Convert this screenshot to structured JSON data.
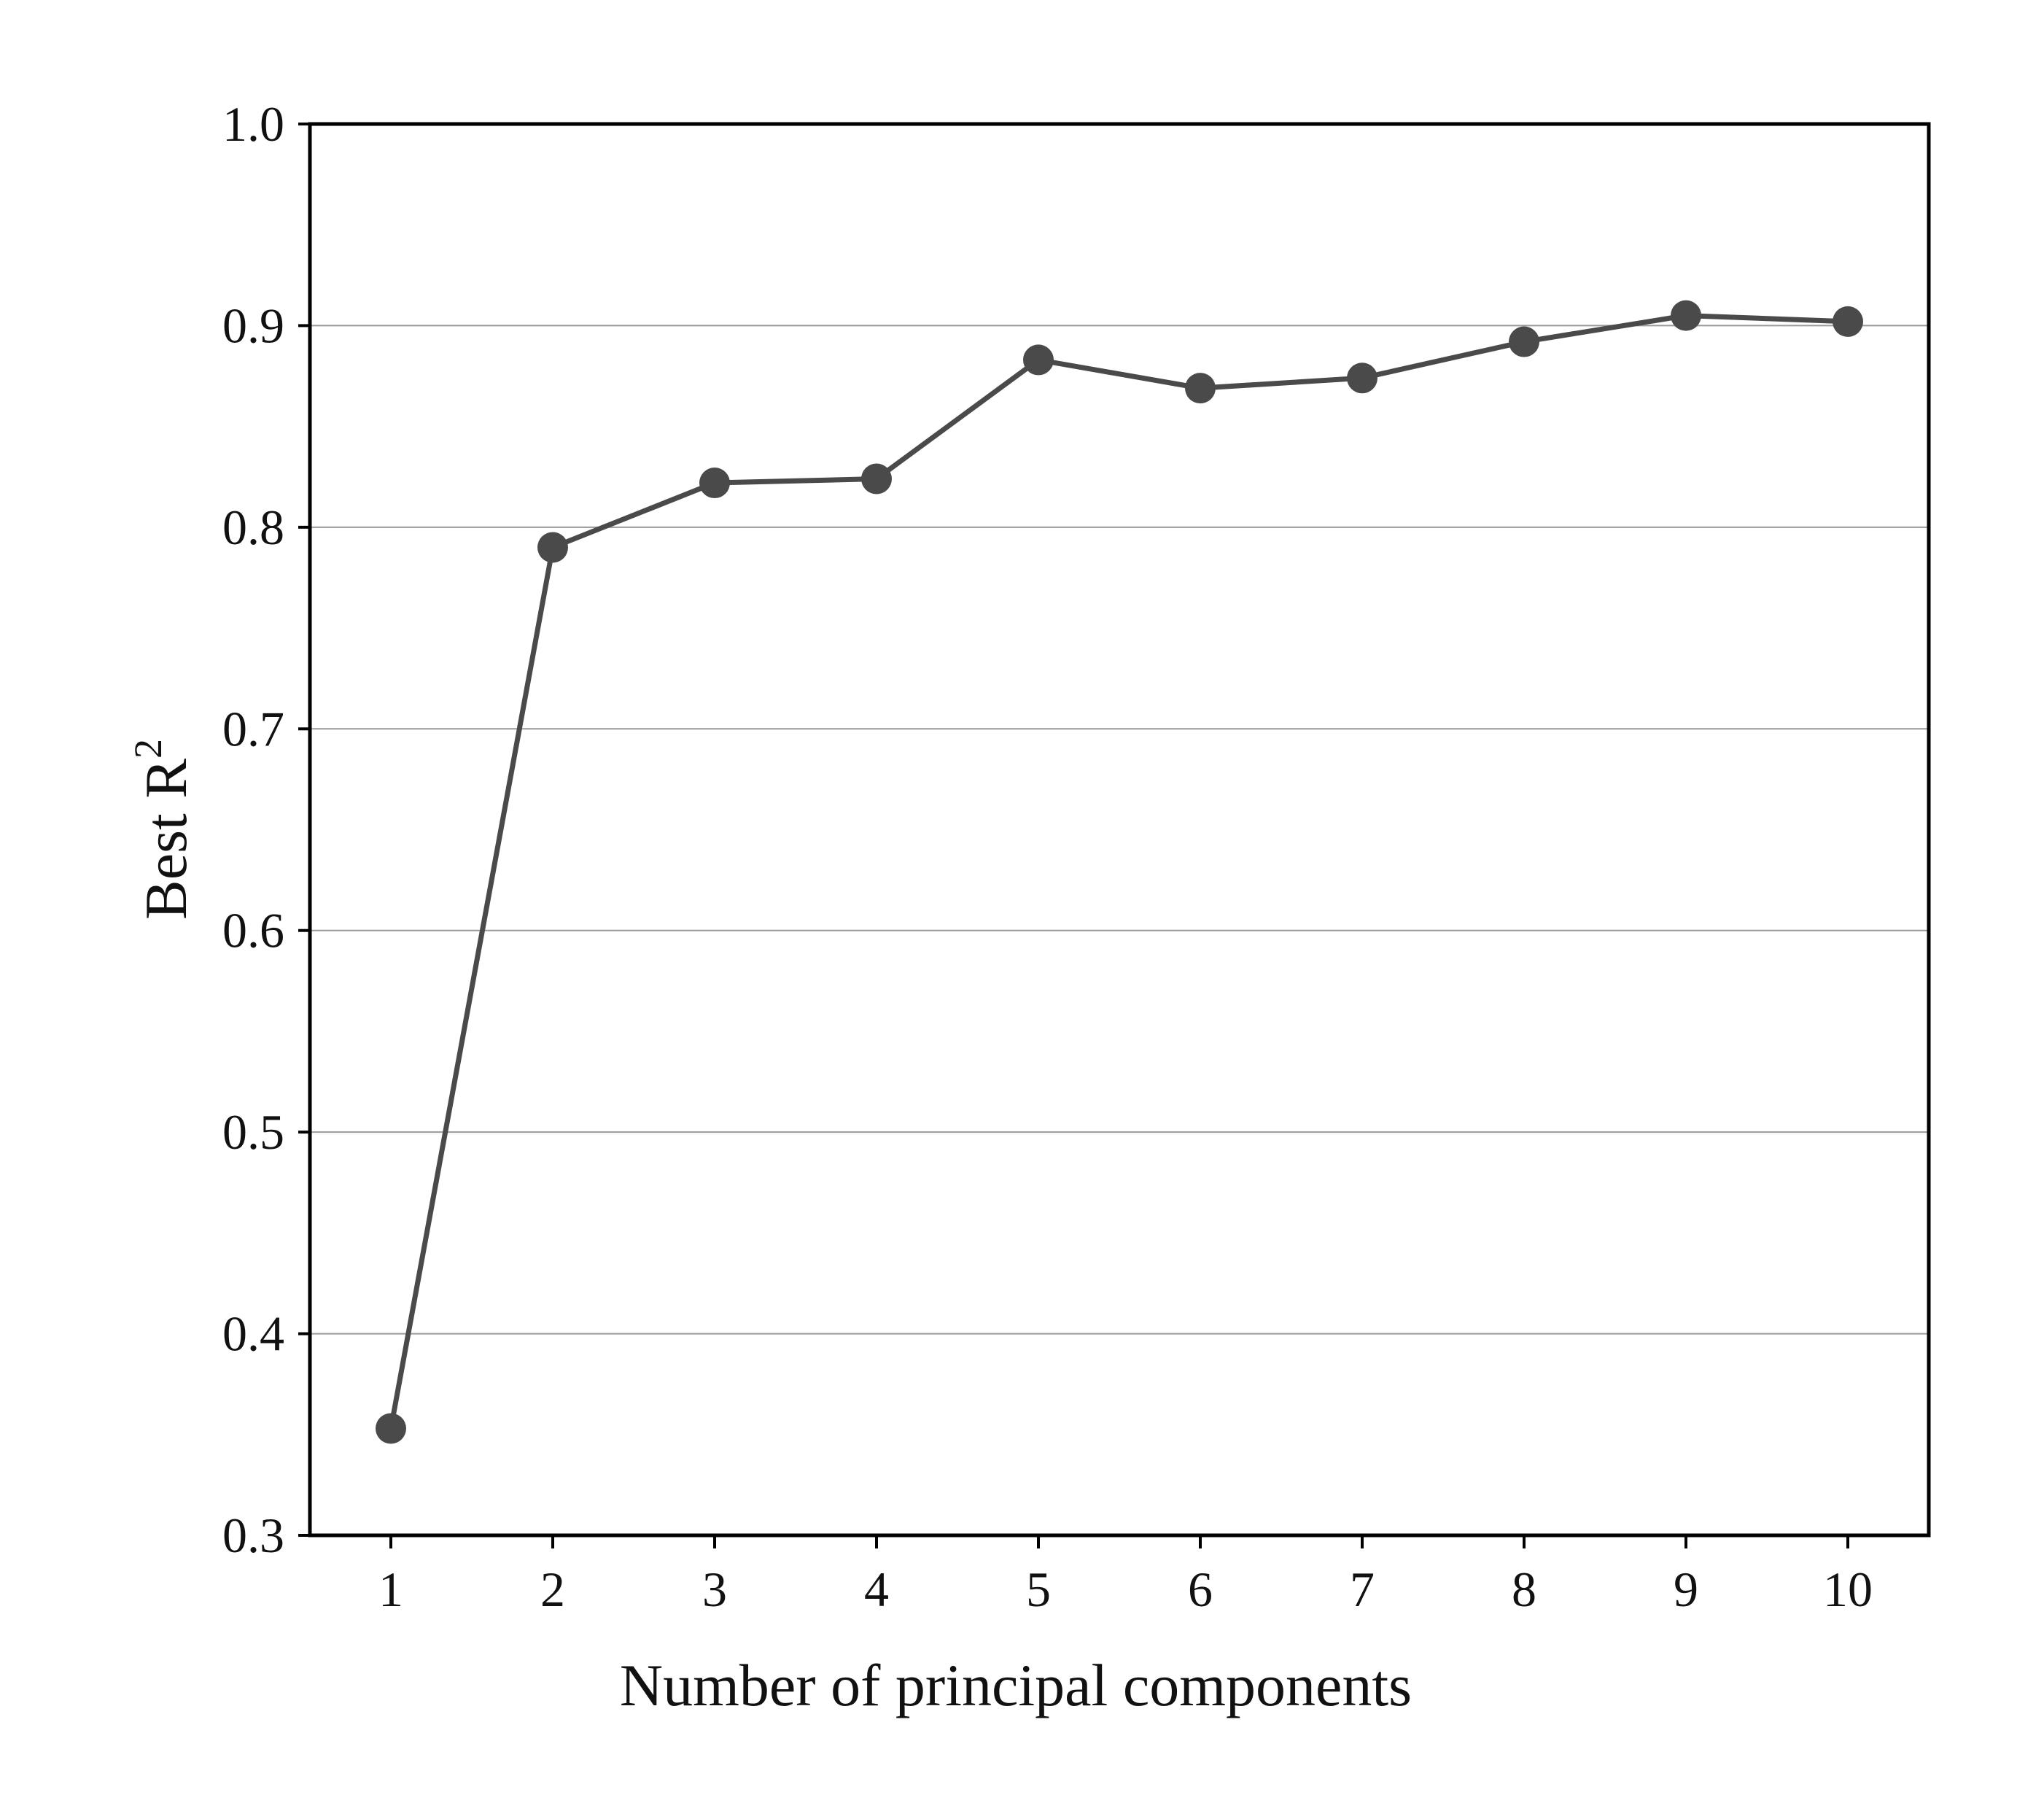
{
  "chart_data": {
    "type": "line",
    "title": "",
    "xlabel": "Number of principal components",
    "ylabel": {
      "main": "Best R",
      "sup": "2"
    },
    "x": [
      1,
      2,
      3,
      4,
      5,
      6,
      7,
      8,
      9,
      10
    ],
    "x_tick_labels": [
      "1",
      "2",
      "3",
      "4",
      "5",
      "6",
      "7",
      "8",
      "9",
      "10"
    ],
    "y_ticks": [
      0.3,
      0.4,
      0.5,
      0.6,
      0.7,
      0.8,
      0.9,
      1.0
    ],
    "y_tick_labels": [
      "0.3",
      "0.4",
      "0.5",
      "0.6",
      "0.7",
      "0.8",
      "0.9",
      "1.0"
    ],
    "xlim": [
      0.5,
      10.5
    ],
    "ylim": [
      0.3,
      1.0
    ],
    "grid": "horizontal",
    "legend": "none",
    "series": [
      {
        "values": [
          0.353,
          0.79,
          0.822,
          0.824,
          0.883,
          0.869,
          0.874,
          0.892,
          0.905,
          0.902
        ],
        "color": "#4a4a4a",
        "marker": "circle"
      }
    ],
    "colors": {
      "line": "#4a4a4a",
      "grid": "#9a9a9a",
      "axis": "#000000"
    }
  }
}
